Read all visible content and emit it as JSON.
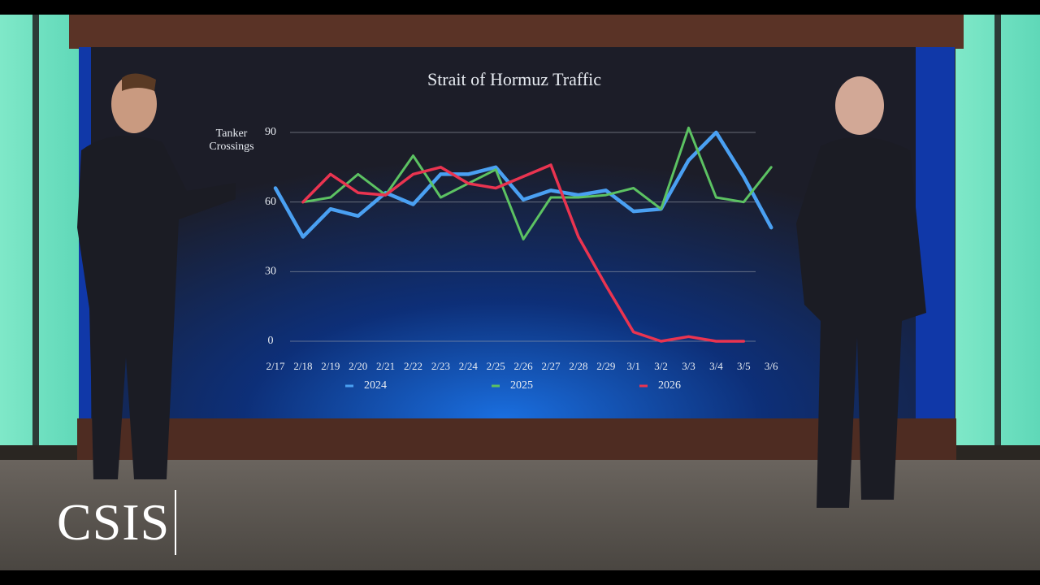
{
  "chart_data": {
    "type": "line",
    "title": "Strait of Hormuz Traffic",
    "y_label": "Tanker Crossings",
    "categories": [
      "2/17",
      "2/18",
      "2/19",
      "2/20",
      "2/21",
      "2/22",
      "2/23",
      "2/24",
      "2/25",
      "2/26",
      "2/27",
      "2/28",
      "2/29",
      "3/1",
      "3/2",
      "3/3",
      "3/4",
      "3/5",
      "3/6"
    ],
    "series": [
      {
        "name": "2024",
        "color": "#4aa0f2",
        "values": [
          66,
          45,
          57,
          54,
          64,
          59,
          72,
          72,
          75,
          61,
          65,
          63,
          65,
          56,
          57,
          78,
          90,
          71,
          49
        ]
      },
      {
        "name": "2025",
        "color": "#5cc262",
        "values": [
          null,
          60,
          62,
          72,
          63,
          80,
          62,
          68,
          74,
          44,
          62,
          62,
          63,
          66,
          57,
          92,
          62,
          60,
          75
        ]
      },
      {
        "name": "2026",
        "color": "#ea3450",
        "values": [
          null,
          60,
          72,
          64,
          63,
          72,
          75,
          68,
          66,
          71,
          76,
          45,
          24,
          4,
          0,
          2,
          0,
          0,
          null
        ]
      }
    ],
    "ylim": [
      0,
      90
    ],
    "yticks": [
      0,
      30,
      60,
      90
    ],
    "grid": true,
    "legend": "bottom"
  },
  "branding": {
    "logo": "CSIS"
  }
}
